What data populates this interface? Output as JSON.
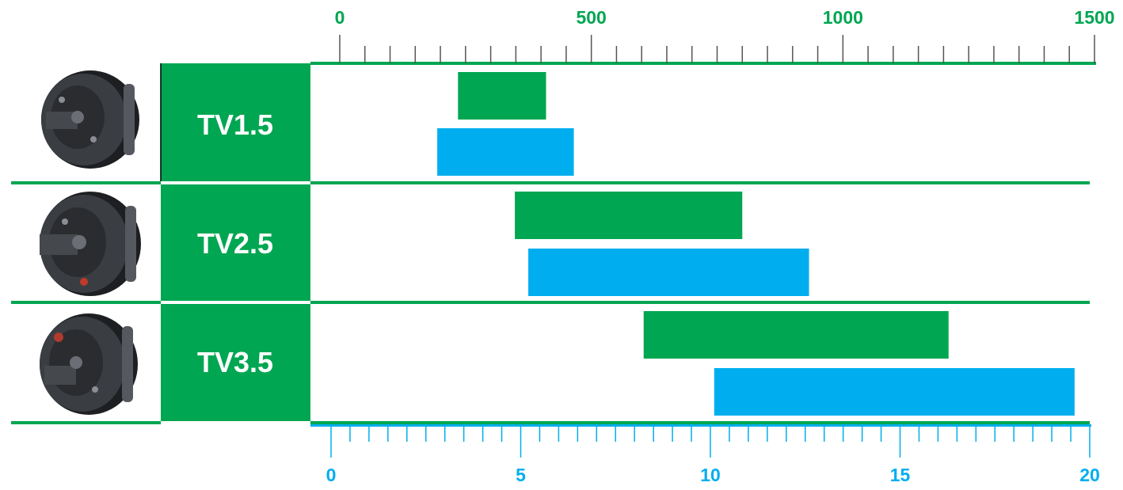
{
  "chart_data": {
    "type": "bar",
    "subtype": "horizontal-range",
    "categories": [
      "TV1.5",
      "TV2.5",
      "TV3.5"
    ],
    "top_axis": {
      "ticks": [
        "0",
        "500",
        "1000",
        "1500"
      ],
      "range": [
        0,
        1500
      ],
      "minor_step": 50,
      "color": "#00a651"
    },
    "bottom_axis": {
      "ticks": [
        "0",
        "5",
        "10",
        "15",
        "20"
      ],
      "range": [
        0,
        20
      ],
      "minor_step": 0.5,
      "color": "#00aeef"
    },
    "series": [
      {
        "color": "#00a651",
        "axis": "top",
        "ranges": [
          [
            235,
            410
          ],
          [
            348,
            800
          ],
          [
            604,
            1210
          ]
        ]
      },
      {
        "color": "#00aeef",
        "axis": "bottom",
        "ranges": [
          [
            2.8,
            6.4
          ],
          [
            5.2,
            12.6
          ],
          [
            10.1,
            19.6
          ]
        ]
      }
    ],
    "grid": false,
    "legend": "none"
  },
  "rows": [
    {
      "label": "TV1.5",
      "image": "hydraulic-rotary-unit-photo"
    },
    {
      "label": "TV2.5",
      "image": "hydraulic-rotary-unit-photo"
    },
    {
      "label": "TV3.5",
      "image": "hydraulic-rotary-unit-photo"
    }
  ],
  "colors": {
    "green": "#00a651",
    "blue": "#00aeef",
    "photo_dark": "#2b2d30"
  }
}
